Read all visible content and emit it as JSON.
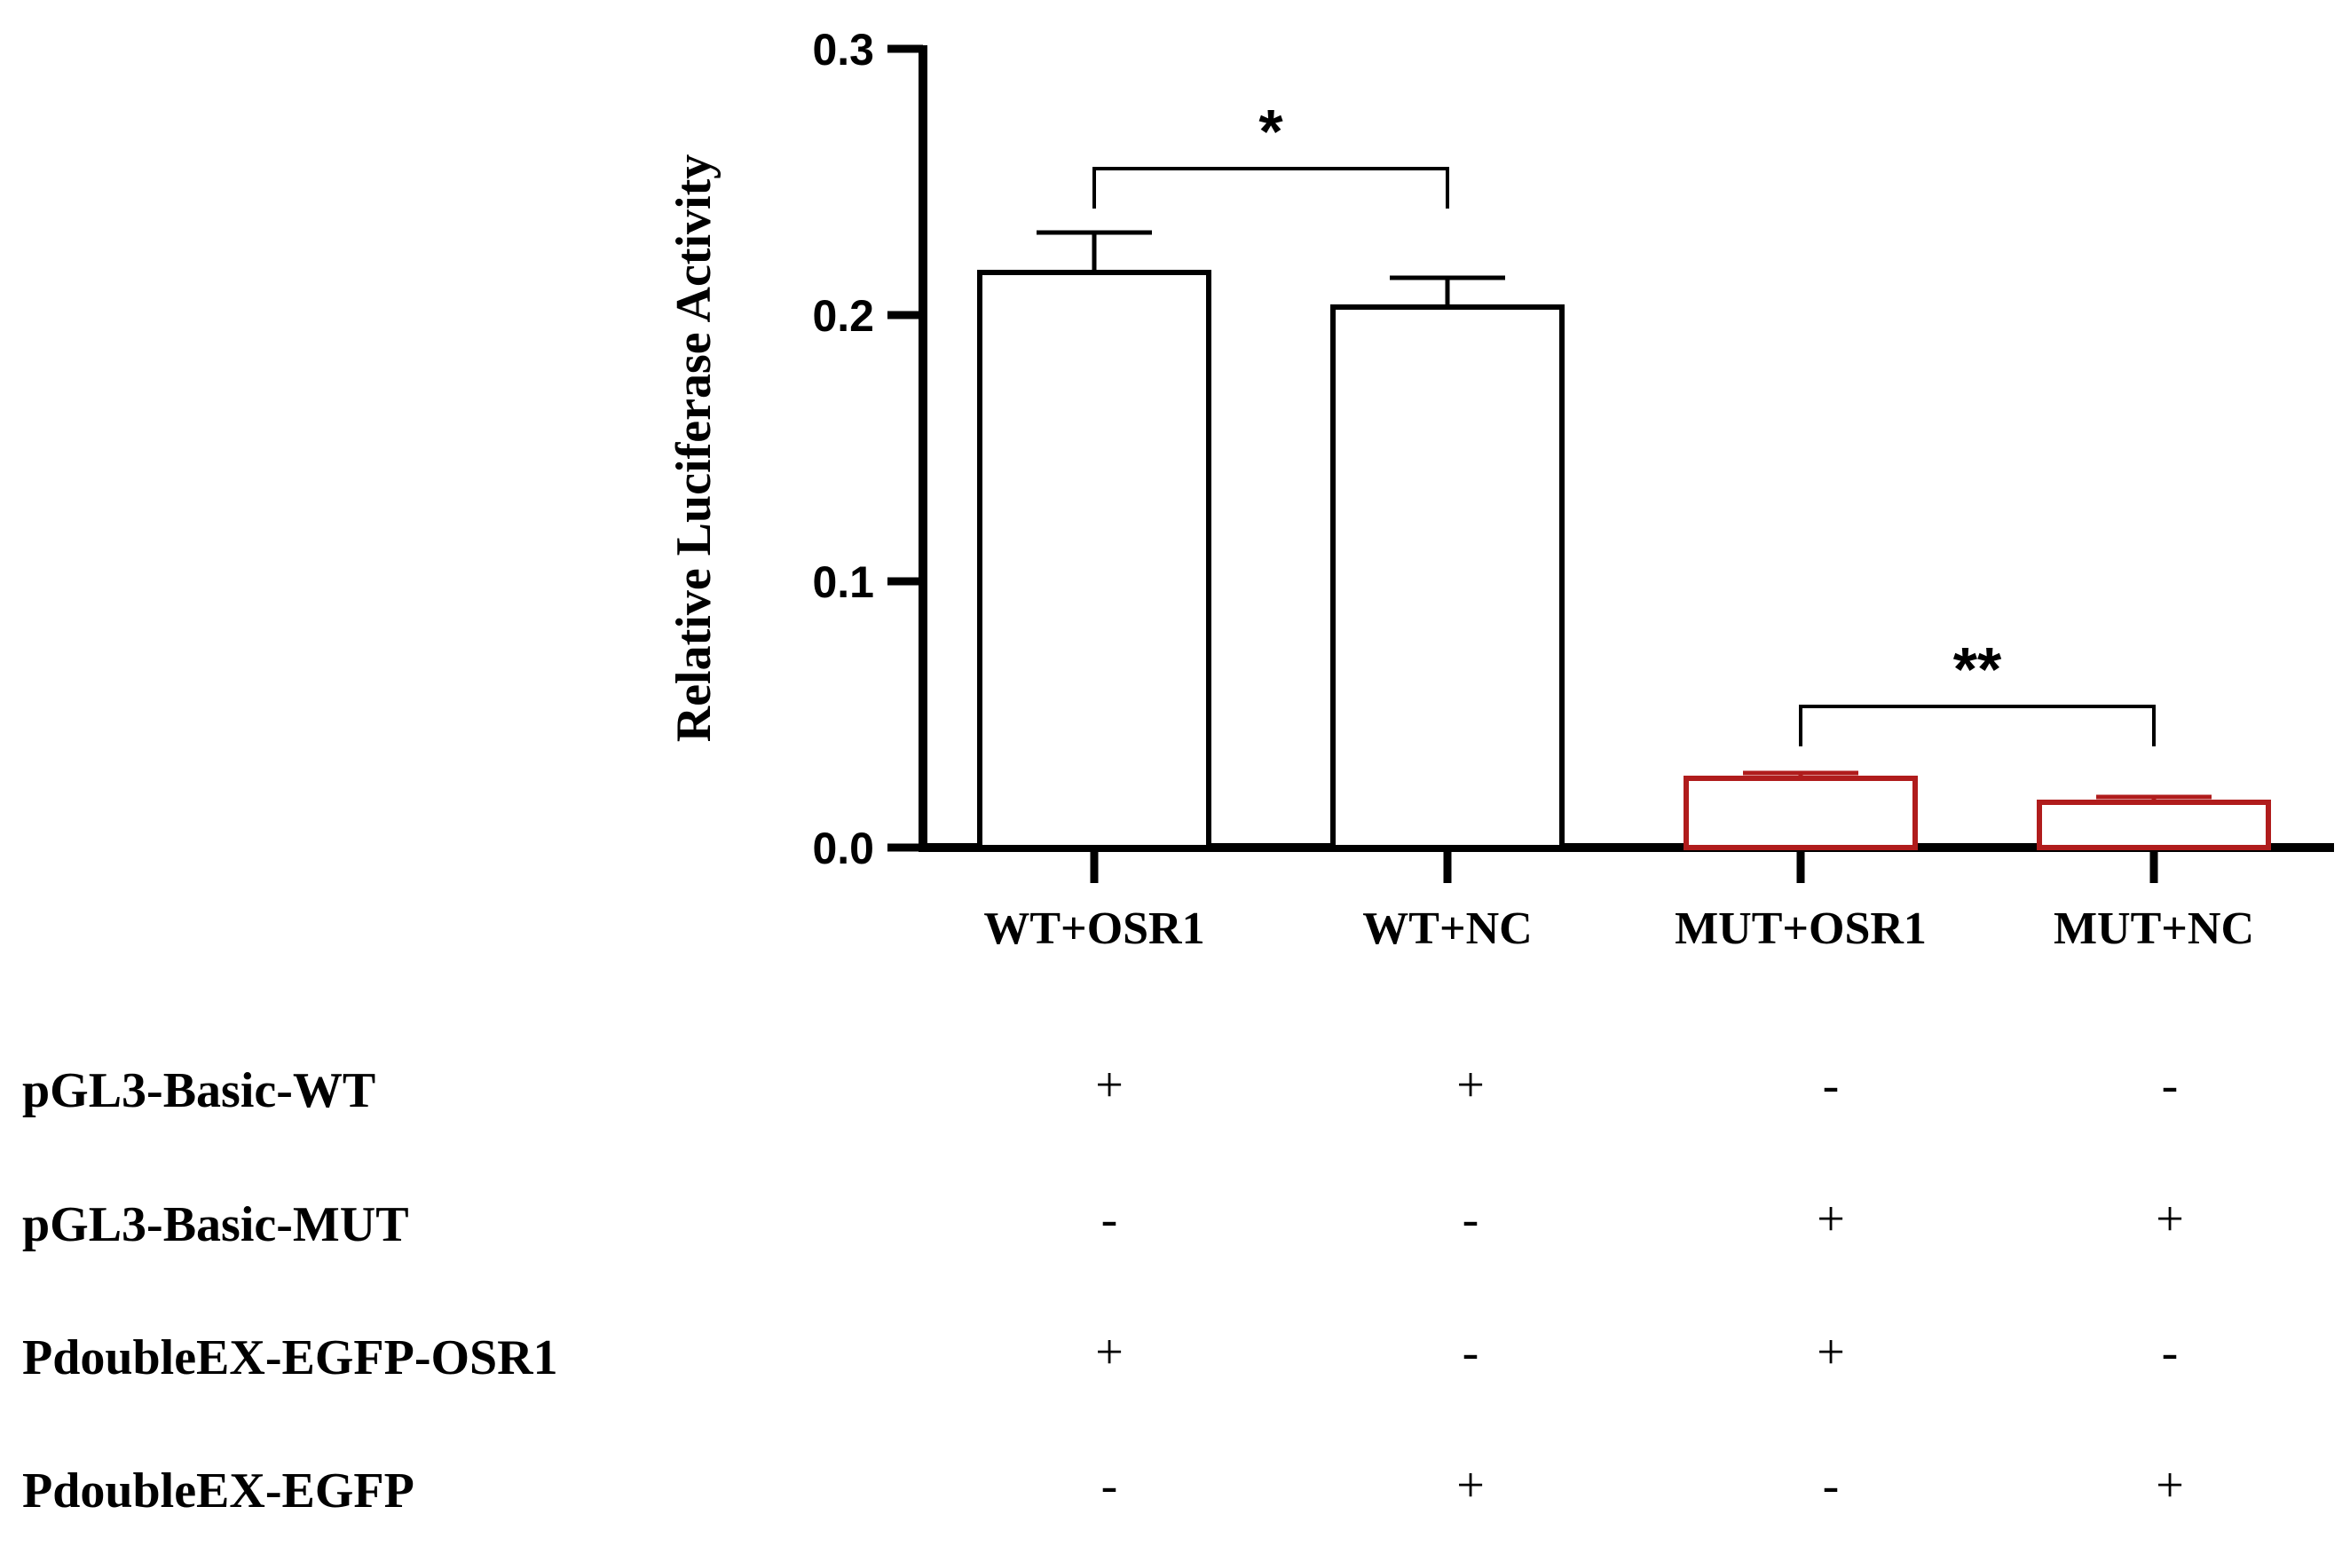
{
  "chart_data": {
    "type": "bar",
    "ylabel": "Relative Luciferase Activity",
    "ylim": [
      0,
      0.3
    ],
    "yticks": [
      0.0,
      0.1,
      0.2,
      0.3
    ],
    "ytick_labels": [
      "0.0",
      "0.1",
      "0.2",
      "0.3"
    ],
    "categories": [
      "WT+OSR1",
      "WT+NC",
      "MUT+OSR1",
      "MUT+NC"
    ],
    "values": [
      0.216,
      0.203,
      0.026,
      0.017
    ],
    "errors": [
      0.015,
      0.011,
      0.002,
      0.002
    ],
    "bar_colors": [
      "#000000",
      "#000000",
      "#b01c1c",
      "#b01c1c"
    ],
    "significance": [
      {
        "between": [
          0,
          1
        ],
        "label": "*",
        "y": 0.255
      },
      {
        "between": [
          2,
          3
        ],
        "label": "**",
        "y": 0.053
      }
    ]
  },
  "condition_table": {
    "rows": [
      {
        "label": "pGL3-Basic-WT",
        "marks": [
          "+",
          "+",
          "-",
          "-"
        ]
      },
      {
        "label": "pGL3-Basic-MUT",
        "marks": [
          "-",
          "-",
          "+",
          "+"
        ]
      },
      {
        "label": "PdoubleEX-EGFP-OSR1",
        "marks": [
          "+",
          "-",
          "+",
          "-"
        ]
      },
      {
        "label": "PdoubleEX-EGFP",
        "marks": [
          "-",
          "+",
          "-",
          "+"
        ]
      }
    ]
  }
}
